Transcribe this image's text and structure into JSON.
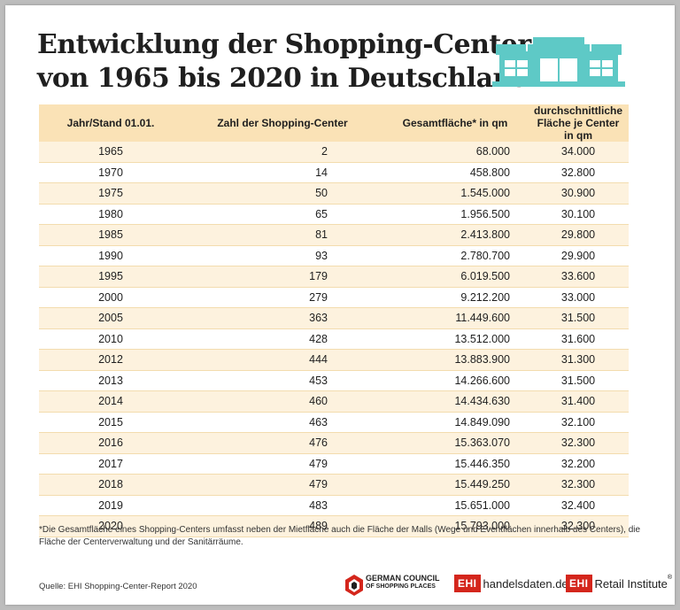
{
  "title_line1": "Entwicklung der Shopping-Center",
  "title_line2": "von 1965 bis 2020 in Deutschland",
  "table": {
    "headers": [
      "Jahr/Stand 01.01.",
      "Zahl der Shopping-Center",
      "Gesamtfläche* in qm",
      "durchschnittliche Fläche je Center in qm"
    ],
    "rows": [
      [
        "1965",
        "2",
        "68.000",
        "34.000"
      ],
      [
        "1970",
        "14",
        "458.800",
        "32.800"
      ],
      [
        "1975",
        "50",
        "1.545.000",
        "30.900"
      ],
      [
        "1980",
        "65",
        "1.956.500",
        "30.100"
      ],
      [
        "1985",
        "81",
        "2.413.800",
        "29.800"
      ],
      [
        "1990",
        "93",
        "2.780.700",
        "29.900"
      ],
      [
        "1995",
        "179",
        "6.019.500",
        "33.600"
      ],
      [
        "2000",
        "279",
        "9.212.200",
        "33.000"
      ],
      [
        "2005",
        "363",
        "11.449.600",
        "31.500"
      ],
      [
        "2010",
        "428",
        "13.512.000",
        "31.600"
      ],
      [
        "2012",
        "444",
        "13.883.900",
        "31.300"
      ],
      [
        "2013",
        "453",
        "14.266.600",
        "31.500"
      ],
      [
        "2014",
        "460",
        "14.434.630",
        "31.400"
      ],
      [
        "2015",
        "463",
        "14.849.090",
        "32.100"
      ],
      [
        "2016",
        "476",
        "15.363.070",
        "32.300"
      ],
      [
        "2017",
        "479",
        "15.446.350",
        "32.200"
      ],
      [
        "2018",
        "479",
        "15.449.250",
        "32.300"
      ],
      [
        "2019",
        "483",
        "15.651.000",
        "32.400"
      ],
      [
        "2020",
        "489",
        "15.793.000",
        "32.300"
      ]
    ]
  },
  "footnote": "*Die Gesamtfläche eines Shopping-Centers umfasst neben der Mietfläche auch die Fläche der Malls (Wege und Eventflächen innerhalb des Centers), die Fläche der Centerverwaltung und der Sanitärräume.",
  "source": "Quelle: EHI Shopping-Center-Report 2020",
  "logos": {
    "gccsp_line1": "GERMAN COUNCIL",
    "gccsp_line2": "OF SHOPPING PLACES",
    "ehi_badge": "EHI",
    "handelsdaten": "handelsdaten.de",
    "retail_institute": "Retail Institute",
    "registered": "®"
  },
  "colors": {
    "header_bg": "#fae2b6",
    "row_stripe": "#fdf2de",
    "icon_teal": "#5ec9c6",
    "ehi_red": "#d4261c"
  },
  "icons": [
    "shopping-mall-icon",
    "gccsp-logo-icon"
  ]
}
